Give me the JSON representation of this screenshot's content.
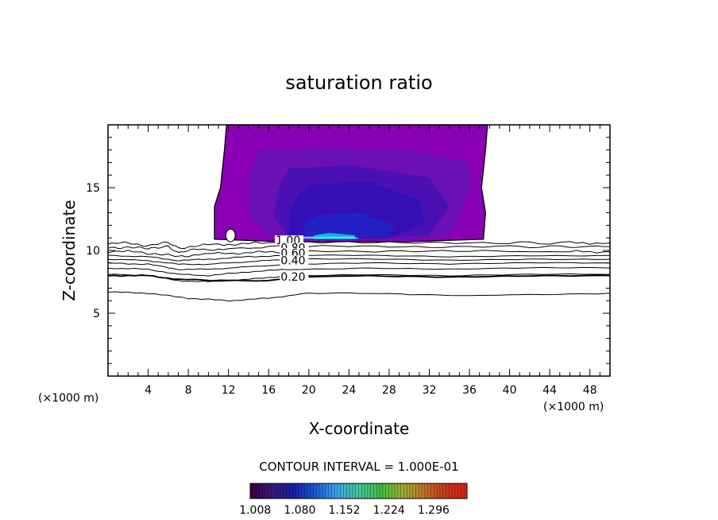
{
  "chart_data": {
    "type": "contour",
    "title": "saturation ratio",
    "xlabel": "X-coordinate",
    "ylabel": "Z-coordinate",
    "x_unit_left": "(×1000 m)",
    "x_unit_right": "(×1000 m)",
    "xlim": [
      0,
      50
    ],
    "ylim": [
      0,
      20
    ],
    "x_ticks": [
      4,
      8,
      12,
      16,
      20,
      24,
      28,
      32,
      36,
      40,
      44,
      48
    ],
    "y_ticks": [
      5,
      10,
      15
    ],
    "contour_interval_text": "CONTOUR INTERVAL = 1.000E-01",
    "contour_labels": [
      {
        "text": "1.00",
        "x": 16.7,
        "y": 10.5
      },
      {
        "text": "0.80",
        "x": 17.2,
        "y": 9.9
      },
      {
        "text": "0.60",
        "x": 17.2,
        "y": 9.5
      },
      {
        "text": "0.40",
        "x": 17.2,
        "y": 8.9
      },
      {
        "text": "0.20",
        "x": 17.2,
        "y": 7.6
      }
    ],
    "subsaturated_contours": [
      {
        "level": 1.0,
        "points": [
          [
            0,
            10.5
          ],
          [
            2,
            10.6
          ],
          [
            4,
            10.4
          ],
          [
            6,
            10.6
          ],
          [
            7,
            10.2
          ],
          [
            9,
            10.4
          ],
          [
            12,
            10.5
          ],
          [
            16,
            10.6
          ],
          [
            24,
            10.6
          ],
          [
            32,
            10.6
          ],
          [
            40,
            10.6
          ],
          [
            46,
            10.6
          ],
          [
            50,
            10.6
          ]
        ]
      },
      {
        "level": 0.9,
        "points": [
          [
            0,
            10.2
          ],
          [
            2,
            10.3
          ],
          [
            4,
            10.1
          ],
          [
            6,
            10.4
          ],
          [
            7,
            9.8
          ],
          [
            9,
            10.1
          ],
          [
            12,
            10.1
          ],
          [
            16,
            10.3
          ],
          [
            24,
            10.3
          ],
          [
            32,
            10.2
          ],
          [
            40,
            10.3
          ],
          [
            46,
            10.3
          ],
          [
            50,
            10.3
          ]
        ]
      },
      {
        "level": 0.8,
        "points": [
          [
            0,
            9.9
          ],
          [
            3,
            9.9
          ],
          [
            5,
            9.7
          ],
          [
            7,
            9.5
          ],
          [
            9,
            9.7
          ],
          [
            13,
            9.8
          ],
          [
            17,
            9.9
          ],
          [
            24,
            9.9
          ],
          [
            32,
            9.9
          ],
          [
            40,
            9.9
          ],
          [
            46,
            9.9
          ],
          [
            50,
            9.9
          ]
        ]
      },
      {
        "level": 0.7,
        "points": [
          [
            0,
            9.6
          ],
          [
            4,
            9.5
          ],
          [
            7,
            9.2
          ],
          [
            10,
            9.3
          ],
          [
            14,
            9.5
          ],
          [
            18,
            9.6
          ],
          [
            26,
            9.6
          ],
          [
            34,
            9.5
          ],
          [
            42,
            9.6
          ],
          [
            50,
            9.6
          ]
        ]
      },
      {
        "level": 0.6,
        "points": [
          [
            0,
            9.3
          ],
          [
            4,
            9.2
          ],
          [
            7,
            8.9
          ],
          [
            10,
            8.9
          ],
          [
            14,
            9.1
          ],
          [
            18,
            9.3
          ],
          [
            26,
            9.3
          ],
          [
            34,
            9.2
          ],
          [
            42,
            9.3
          ],
          [
            50,
            9.3
          ]
        ]
      },
      {
        "level": 0.5,
        "points": [
          [
            0,
            9.0
          ],
          [
            4,
            8.9
          ],
          [
            7,
            8.5
          ],
          [
            10,
            8.5
          ],
          [
            14,
            8.7
          ],
          [
            18,
            8.9
          ],
          [
            26,
            9.0
          ],
          [
            34,
            8.9
          ],
          [
            42,
            9.0
          ],
          [
            50,
            9.0
          ]
        ]
      },
      {
        "level": 0.4,
        "points": [
          [
            0,
            8.6
          ],
          [
            4,
            8.5
          ],
          [
            7,
            8.1
          ],
          [
            10,
            8.0
          ],
          [
            14,
            8.3
          ],
          [
            18,
            8.5
          ],
          [
            26,
            8.6
          ],
          [
            34,
            8.5
          ],
          [
            42,
            8.6
          ],
          [
            50,
            8.6
          ]
        ]
      },
      {
        "level": 0.3,
        "points": [
          [
            0,
            8.1
          ],
          [
            4,
            8.0
          ],
          [
            7,
            7.6
          ],
          [
            10,
            7.5
          ],
          [
            14,
            7.7
          ],
          [
            18,
            8.0
          ],
          [
            26,
            8.1
          ],
          [
            34,
            8.0
          ],
          [
            42,
            8.1
          ],
          [
            50,
            8.1
          ]
        ]
      },
      {
        "level": 0.2,
        "points": [
          [
            0,
            8.0
          ],
          [
            4,
            8.0
          ],
          [
            7,
            7.7
          ],
          [
            12,
            7.6
          ],
          [
            16,
            7.6
          ],
          [
            20,
            7.9
          ],
          [
            26,
            8.0
          ],
          [
            34,
            7.9
          ],
          [
            42,
            8.0
          ],
          [
            50,
            8.0
          ]
        ]
      },
      {
        "level": 0.1,
        "points": [
          [
            0,
            6.7
          ],
          [
            4,
            6.6
          ],
          [
            8,
            6.2
          ],
          [
            12,
            6.0
          ],
          [
            16,
            6.2
          ],
          [
            20,
            6.6
          ],
          [
            26,
            6.6
          ],
          [
            30,
            6.5
          ],
          [
            36,
            6.4
          ],
          [
            42,
            6.5
          ],
          [
            50,
            6.6
          ]
        ]
      }
    ],
    "supersaturated_regions": [
      {
        "level": 1.008,
        "points": [
          [
            11.8,
            20
          ],
          [
            11.6,
            18
          ],
          [
            11.2,
            15
          ],
          [
            10.6,
            13.5
          ],
          [
            10.6,
            10.9
          ],
          [
            17,
            10.7
          ],
          [
            24,
            10.7
          ],
          [
            30,
            10.7
          ],
          [
            37.4,
            10.9
          ],
          [
            37.6,
            13
          ],
          [
            37.2,
            15
          ],
          [
            37.6,
            18
          ],
          [
            37.8,
            20
          ]
        ]
      },
      {
        "level": 1.03,
        "points": [
          [
            15,
            18
          ],
          [
            22,
            18.2
          ],
          [
            30,
            18
          ],
          [
            36,
            17
          ],
          [
            36,
            15
          ],
          [
            35,
            12.5
          ],
          [
            34,
            11.2
          ],
          [
            30,
            10.9
          ],
          [
            22,
            10.9
          ],
          [
            16,
            11.2
          ],
          [
            14,
            12.8
          ],
          [
            14,
            15.5
          ]
        ]
      },
      {
        "level": 1.06,
        "points": [
          [
            18,
            16.5
          ],
          [
            24,
            16.8
          ],
          [
            32,
            15.8
          ],
          [
            34,
            13.5
          ],
          [
            32,
            11.2
          ],
          [
            24,
            10.9
          ],
          [
            18,
            11.1
          ],
          [
            16.5,
            12.8
          ],
          [
            17,
            15
          ]
        ]
      },
      {
        "level": 1.08,
        "points": [
          [
            20,
            15.2
          ],
          [
            26,
            15.5
          ],
          [
            31,
            14
          ],
          [
            31.5,
            12.2
          ],
          [
            28,
            11
          ],
          [
            22,
            10.9
          ],
          [
            18,
            11.2
          ],
          [
            18,
            13
          ],
          [
            19,
            14.5
          ]
        ]
      },
      {
        "level": 1.11,
        "points": [
          [
            21,
            12.8
          ],
          [
            25,
            13
          ],
          [
            28.5,
            12
          ],
          [
            28,
            11.1
          ],
          [
            22,
            10.9
          ],
          [
            19.5,
            11.2
          ],
          [
            19.5,
            12.2
          ]
        ]
      },
      {
        "level": 1.14,
        "points": [
          [
            20.5,
            11.2
          ],
          [
            22,
            11.4
          ],
          [
            24.6,
            11.2
          ],
          [
            24.6,
            10.9
          ],
          [
            20.5,
            10.9
          ]
        ]
      },
      {
        "level": 1.17,
        "points": [
          [
            19.5,
            11.1
          ],
          [
            24.5,
            11.1
          ],
          [
            25,
            10.95
          ],
          [
            19.5,
            10.95
          ]
        ]
      }
    ],
    "dry_hole": {
      "x": 12.2,
      "y": 11.2
    },
    "colorbar": {
      "min": 1.0,
      "max": 1.35,
      "tick_labels": [
        "1.008",
        "1.080",
        "1.152",
        "1.224",
        "1.296"
      ],
      "tick_values": [
        1.008,
        1.08,
        1.152,
        1.224,
        1.296
      ],
      "stops": [
        "#3a0040",
        "#3a1a7a",
        "#1420a8",
        "#1a5ad8",
        "#3aa8e8",
        "#40c8a0",
        "#40c040",
        "#a0b030",
        "#c07828",
        "#c83820",
        "#e02010"
      ]
    },
    "region_colors": {
      "1.008": "#8a00b4",
      "1.03": "#6a10b4",
      "1.06": "#4a10b4",
      "1.08": "#3410b4",
      "1.11": "#2420c4",
      "1.14": "#10b0e0",
      "1.17": "#40e8f8"
    }
  }
}
